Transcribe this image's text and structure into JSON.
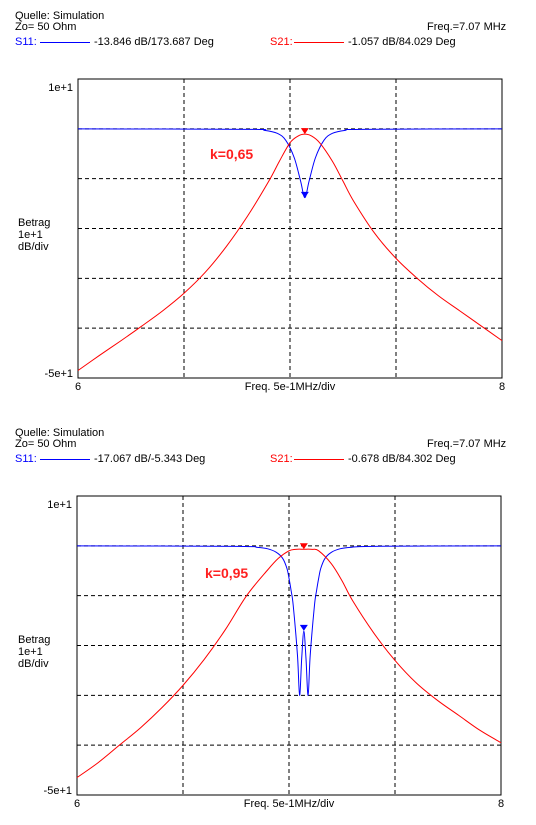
{
  "chart_data": [
    {
      "type": "line",
      "header": {
        "source": "Quelle: Simulation",
        "impedance": "Zo= 50 Ohm",
        "freq": "Freq.=7.07 MHz",
        "s11_label": "S11:",
        "s11_value": "-13.846 dB/173.687 Deg",
        "s21_label": "S21:",
        "s21_value": "-1.057 dB/84.029 Deg"
      },
      "ylabel_lines": [
        "Betrag",
        "1e+1",
        "dB/div"
      ],
      "ytick_top": "1e+1",
      "ytick_bottom": "-5e+1",
      "xtick_left": "6",
      "xtick_right": "8",
      "xlabel": "Freq. 5e-1MHz/div",
      "annotation": "k=0,65",
      "xlim": [
        6,
        8
      ],
      "ylim": [
        -50,
        10
      ],
      "marker_freq": 7.07,
      "series": [
        {
          "name": "S11",
          "color": "#0000ff",
          "x": [
            6.0,
            6.8,
            6.88,
            6.94,
            6.98,
            7.02,
            7.05,
            7.07,
            7.09,
            7.12,
            7.16,
            7.2,
            7.26,
            7.34,
            8.0
          ],
          "y": [
            0.0,
            -0.1,
            -0.3,
            -0.9,
            -2.3,
            -5.8,
            -10.5,
            -13.8,
            -10.5,
            -5.8,
            -2.3,
            -0.9,
            -0.3,
            -0.1,
            0.0
          ]
        },
        {
          "name": "S21",
          "color": "#ff0000",
          "x": [
            6.0,
            6.1,
            6.2,
            6.3,
            6.4,
            6.5,
            6.6,
            6.7,
            6.8,
            6.9,
            6.95,
            7.0,
            7.04,
            7.07,
            7.1,
            7.14,
            7.2,
            7.25,
            7.3,
            7.4,
            7.5,
            7.6,
            7.7,
            7.8,
            7.9,
            8.0
          ],
          "y": [
            -48.5,
            -45.5,
            -42.6,
            -39.6,
            -36.5,
            -33.0,
            -28.8,
            -23.6,
            -17.5,
            -10.5,
            -6.5,
            -2.8,
            -1.4,
            -1.06,
            -1.4,
            -2.8,
            -6.5,
            -10.5,
            -14.5,
            -21.0,
            -26.0,
            -30.0,
            -33.5,
            -36.5,
            -39.5,
            -42.5
          ]
        }
      ],
      "marker_s11": -13.846,
      "marker_s21": -1.057
    },
    {
      "type": "line",
      "header": {
        "source": "Quelle: Simulation",
        "impedance": "Zo= 50 Ohm",
        "freq": "Freq.=7.07 MHz",
        "s11_label": "S11:",
        "s11_value": "-17.067 dB/-5.343 Deg",
        "s21_label": "S21:",
        "s21_value": "-0.678 dB/84.302 Deg"
      },
      "ylabel_lines": [
        "Betrag",
        "1e+1",
        "dB/div"
      ],
      "ytick_top": "1e+1",
      "ytick_bottom": "-5e+1",
      "xtick_left": "6",
      "xtick_right": "8",
      "xlabel": "Freq. 5e-1MHz/div",
      "annotation": "k=0,95",
      "xlim": [
        6,
        8
      ],
      "ylim": [
        -50,
        10
      ],
      "marker_freq": 7.07,
      "series": [
        {
          "name": "S11",
          "color": "#0000ff",
          "x": [
            6.0,
            6.75,
            6.85,
            6.9,
            6.94,
            6.97,
            6.99,
            7.0,
            7.01,
            7.02,
            7.04,
            7.05,
            7.06,
            7.07,
            7.08,
            7.09,
            7.1,
            7.12,
            7.13,
            7.14,
            7.15,
            7.17,
            7.2,
            7.24,
            7.29,
            7.4,
            8.0
          ],
          "y": [
            0.0,
            -0.1,
            -0.3,
            -0.6,
            -1.3,
            -2.5,
            -4.5,
            -6.5,
            -9.0,
            -12.0,
            -22.0,
            -30.0,
            -22.5,
            -17.1,
            -22.5,
            -30.0,
            -22.0,
            -12.0,
            -9.0,
            -6.5,
            -4.5,
            -2.5,
            -1.3,
            -0.6,
            -0.3,
            -0.1,
            0.0
          ]
        },
        {
          "name": "S21",
          "color": "#ff0000",
          "x": [
            6.0,
            6.1,
            6.2,
            6.3,
            6.4,
            6.5,
            6.6,
            6.7,
            6.8,
            6.9,
            6.95,
            7.0,
            7.03,
            7.07,
            7.11,
            7.14,
            7.2,
            7.25,
            7.3,
            7.4,
            7.5,
            7.6,
            7.7,
            7.8,
            7.9,
            8.0
          ],
          "y": [
            -46.5,
            -43.5,
            -40.0,
            -36.5,
            -32.5,
            -28.0,
            -22.8,
            -16.8,
            -10.0,
            -4.8,
            -2.5,
            -1.0,
            -0.7,
            -0.68,
            -0.7,
            -1.0,
            -3.6,
            -7.0,
            -11.0,
            -17.5,
            -23.0,
            -27.5,
            -31.0,
            -34.0,
            -37.0,
            -39.5
          ]
        }
      ],
      "marker_s11": -17.067,
      "marker_s21": -0.678
    }
  ]
}
